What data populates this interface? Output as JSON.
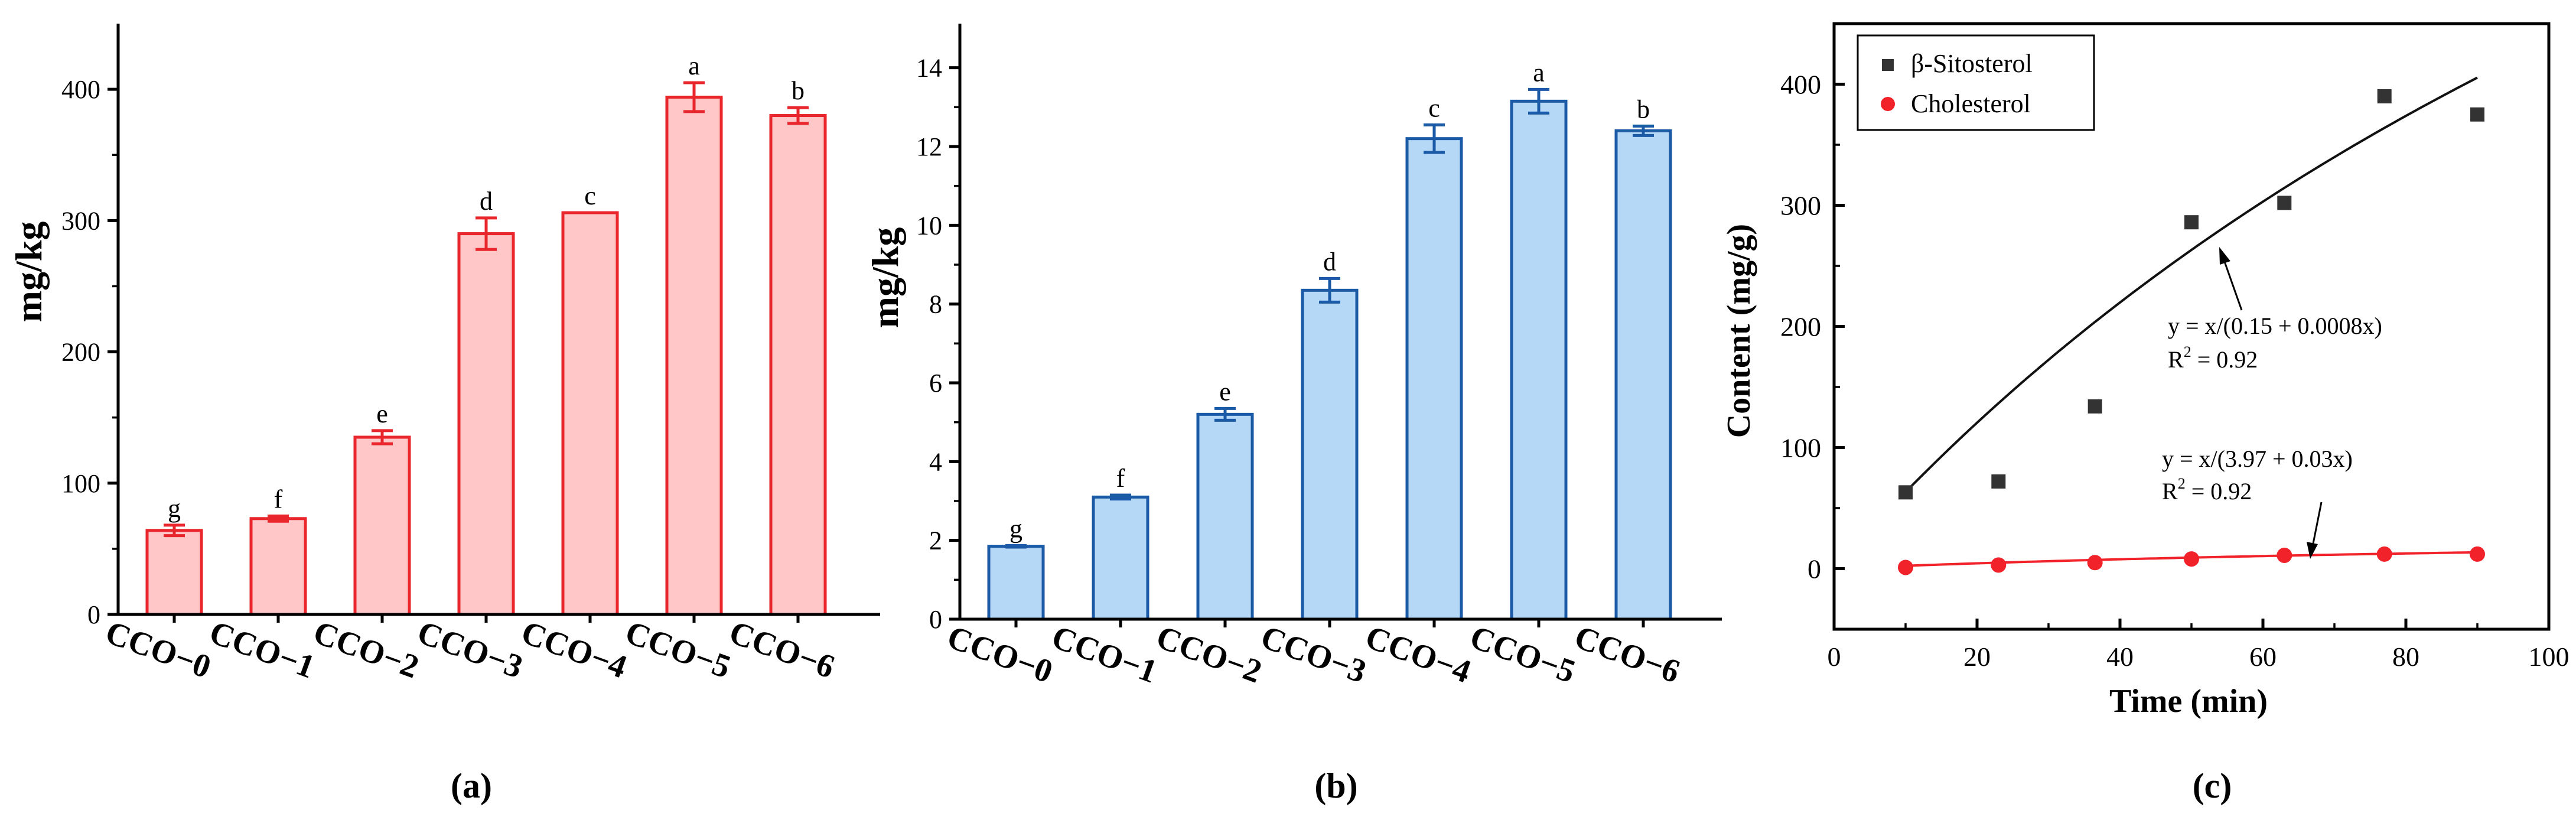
{
  "chart_data": [
    {
      "panel": "(a)",
      "type": "bar",
      "categories": [
        "CCO−0",
        "CCO−1",
        "CCO−2",
        "CCO−3",
        "CCO−4",
        "CCO−5",
        "CCO−6"
      ],
      "values": [
        64,
        73,
        135,
        290,
        306,
        394,
        380
      ],
      "errors": [
        4,
        2,
        5,
        12,
        0,
        11,
        6
      ],
      "letters": [
        "g",
        "f",
        "e",
        "d",
        "c",
        "a",
        "b"
      ],
      "ylabel": "mg/kg",
      "xlabel": "",
      "ylim": [
        0,
        450
      ],
      "yticks": [
        "0",
        "100",
        "200",
        "300",
        "400"
      ],
      "colors": {
        "fill": "#ffc7c7",
        "stroke": "#e8262c"
      }
    },
    {
      "panel": "(b)",
      "type": "bar",
      "categories": [
        "CCO−0",
        "CCO−1",
        "CCO−2",
        "CCO−3",
        "CCO−4",
        "CCO−5",
        "CCO−6"
      ],
      "values": [
        1.85,
        3.1,
        5.2,
        8.35,
        12.2,
        13.15,
        12.4
      ],
      "errors": [
        0.02,
        0.05,
        0.15,
        0.3,
        0.35,
        0.3,
        0.12
      ],
      "letters": [
        "g",
        "f",
        "e",
        "d",
        "c",
        "a",
        "b"
      ],
      "ylabel": "mg/kg",
      "xlabel": "",
      "ylim": [
        0,
        15
      ],
      "yticks": [
        "0",
        "2",
        "4",
        "6",
        "8",
        "10",
        "12",
        "14"
      ],
      "colors": {
        "fill": "#b5d8f7",
        "stroke": "#1a5aa6"
      }
    },
    {
      "panel": "(c)",
      "type": "scatter",
      "xlabel": "Time (min)",
      "ylabel": "Content (mg/g)",
      "xlim": [
        0,
        100
      ],
      "ylim": [
        -50,
        450
      ],
      "xticks": [
        "0",
        "20",
        "40",
        "60",
        "80",
        "100"
      ],
      "yticks": [
        "0",
        "100",
        "200",
        "300",
        "400"
      ],
      "legend_position": "top-left",
      "series": [
        {
          "name": "β-Sitosterol",
          "marker": "square",
          "color": "#333333",
          "x": [
            10,
            23,
            36.5,
            50,
            63,
            77,
            90
          ],
          "y": [
            63,
            72,
            134,
            286,
            302,
            390,
            375
          ],
          "fit": {
            "a": 0.15,
            "b": 0.0008,
            "x_range": [
              10,
              90
            ]
          },
          "equation": "y = x/(0.15 + 0.0008x)",
          "r2_prefix": "R",
          "r2_suffix": " = 0.92"
        },
        {
          "name": "Cholesterol",
          "marker": "circle",
          "color": "#f2222a",
          "x": [
            10,
            23,
            36.5,
            50,
            63,
            77,
            90
          ],
          "y": [
            1,
            3,
            5,
            8,
            11,
            12,
            12
          ],
          "fit": {
            "a": 3.97,
            "b": 0.03,
            "x_range": [
              10,
              90
            ]
          },
          "equation": "y = x/(3.97 + 0.03x)",
          "r2_prefix": "R",
          "r2_suffix": " = 0.92"
        }
      ],
      "r2_superscript": "2"
    }
  ]
}
